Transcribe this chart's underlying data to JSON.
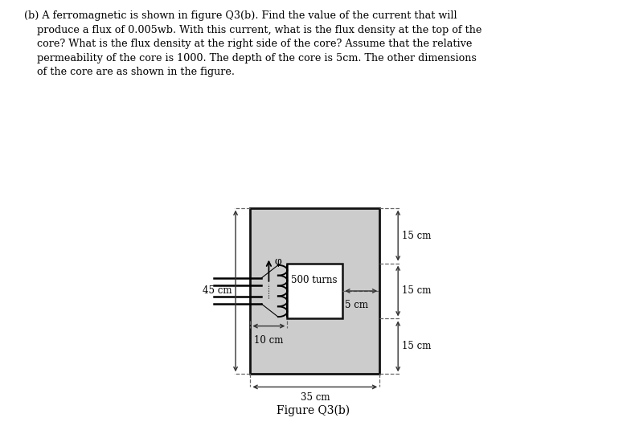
{
  "bg_color": "#ffffff",
  "core_fill": "#cccccc",
  "core_edge": "#111111",
  "dashed_color": "#666666",
  "solid_color": "#333333",
  "turns_label": "500 turns",
  "phi_label": "φ",
  "dim_top_right": "15 cm",
  "dim_mid_right": "15 cm",
  "dim_bot_right": "15 cm",
  "dim_left": "45 cm",
  "dim_5cm": "5 cm",
  "dim_10cm": "10 cm",
  "dim_35cm": "35 cm",
  "figure_caption": "Figure Q3(b)",
  "text_line1": "(b) A ferromagnetic is shown in figure Q3(b). Find the value of the current that will",
  "text_line2": "    produce a flux of 0.005wb. With this current, what is the flux density at the top of the",
  "text_line3": "    core? What is the flux density at the right side of the core? Assume that the relative",
  "text_line4": "    permeability of the core is 1000. The depth of the core is 5cm. The other dimensions",
  "text_line5": "    of the core are as shown in the figure."
}
